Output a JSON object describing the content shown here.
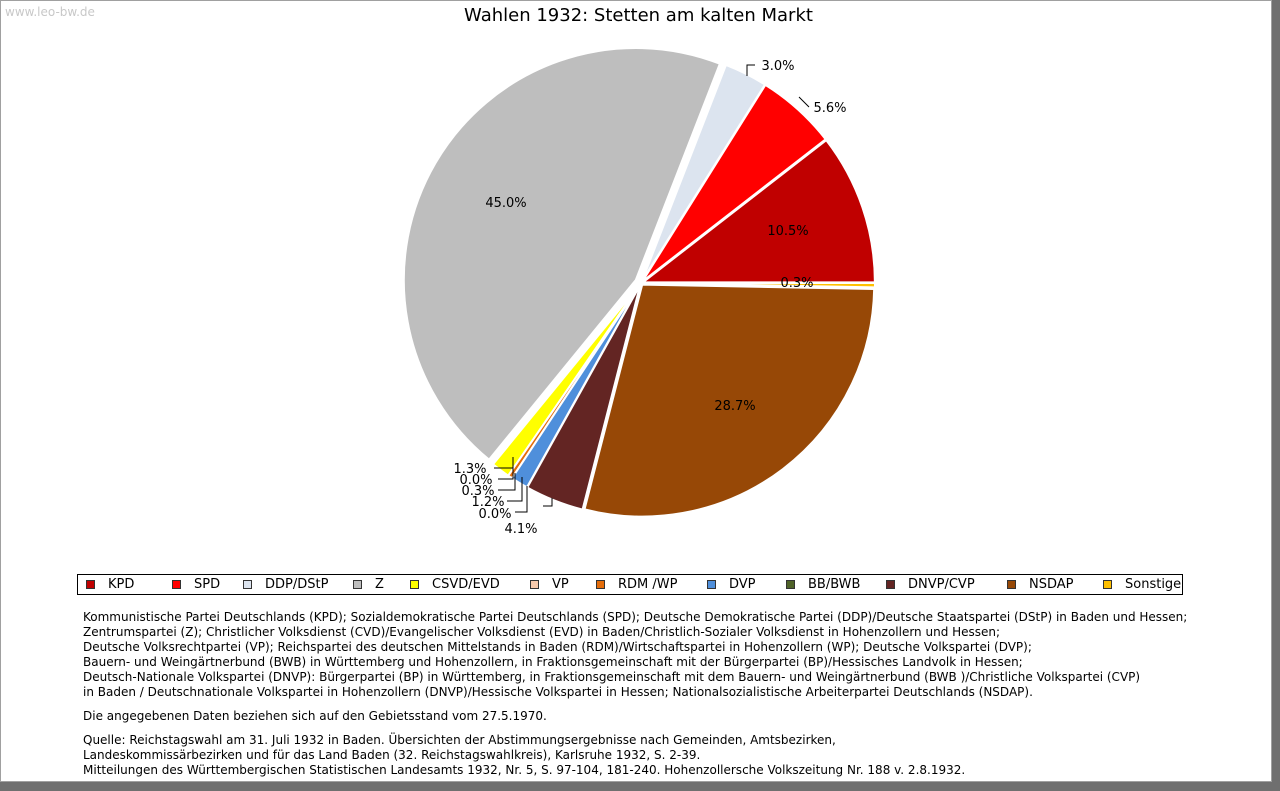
{
  "watermark": "www.leo-bw.de",
  "chart_data": {
    "type": "pie",
    "title": "Wahlen 1932: Stetten am kalten Markt",
    "slices": [
      {
        "name": "KPD",
        "value": 10.5,
        "label": "10.5%",
        "color": "#c00000"
      },
      {
        "name": "SPD",
        "value": 5.6,
        "label": "5.6%",
        "color": "#ff0000"
      },
      {
        "name": "DDP/DStP",
        "value": 3.0,
        "label": "3.0%",
        "color": "#dce4ef"
      },
      {
        "name": "Z",
        "value": 45.0,
        "label": "45.0%",
        "color": "#bebebe"
      },
      {
        "name": "CSVD/EVD",
        "value": 1.3,
        "label": "1.3%",
        "color": "#ffff00"
      },
      {
        "name": "VP",
        "value": 0.0,
        "label": "0.0%",
        "color": "#f8cbad"
      },
      {
        "name": "RDM /WP",
        "value": 0.3,
        "label": "0.3%",
        "color": "#e46c0a"
      },
      {
        "name": "DVP",
        "value": 1.2,
        "label": "1.2%",
        "color": "#4f8fdb"
      },
      {
        "name": "BB/BWB",
        "value": 0.0,
        "label": "0.0%",
        "color": "#4f6228"
      },
      {
        "name": "DNVP/CVP",
        "value": 4.1,
        "label": "4.1%",
        "color": "#632523"
      },
      {
        "name": "NSDAP",
        "value": 28.7,
        "label": "28.7%",
        "color": "#974806"
      },
      {
        "name": "Sonstige",
        "value": 0.3,
        "label": "0.3%",
        "color": "#ffc000"
      }
    ]
  },
  "notes": {
    "definitions": [
      "Kommunistische Partei Deutschlands (KPD); Sozialdemokratische Partei Deutschlands (SPD); Deutsche Demokratische Partei (DDP)/Deutsche Staatspartei (DStP) in Baden und Hessen;",
      "Zentrumspartei (Z); Christlicher Volksdienst (CVD)/Evangelischer Volksdienst (EVD) in Baden/Christlich-Sozialer Volksdienst in Hohenzollern und Hessen;",
      "Deutsche Volksrechtpartei (VP); Reichspartei des deutschen Mittelstands in Baden (RDM)/Wirtschaftspartei in Hohenzollern (WP); Deutsche Volkspartei (DVP);",
      "Bauern- und Weingärtnerbund (BWB) in Württemberg und Hohenzollern, in Fraktionsgemeinschaft mit der Bürgerpartei (BP)/Hessisches Landvolk in Hessen;",
      "Deutsch-Nationale Volkspartei (DNVP): Bürgerpartei (BP) in Württemberg, in Fraktionsgemeinschaft mit dem Bauern- und Weingärtnerbund (BWB )/Christliche Volkspartei (CVP)",
      "in Baden / Deutschnationale Volkspartei in Hohenzollern (DNVP)/Hessische Volkspartei in Hessen; Nationalsozialistische Arbeiterpartei Deutschlands (NSDAP)."
    ],
    "status": "Die angegebenen Daten beziehen sich auf den Gebietsstand vom 27.5.1970.",
    "source": [
      "Quelle: Reichstagswahl am 31. Juli 1932 in Baden. Übersichten der Abstimmungsergebnisse nach Gemeinden, Amtsbezirken,",
      "Landeskommissärbezirken und für das Land Baden (32. Reichstagswahlkreis), Karlsruhe 1932, S. 2-39.",
      "Mitteilungen des Württembergischen Statistischen Landesamts 1932, Nr. 5, S. 97-104, 181-240. Hohenzollersche Volkszeitung Nr. 188 v. 2.8.1932."
    ]
  }
}
